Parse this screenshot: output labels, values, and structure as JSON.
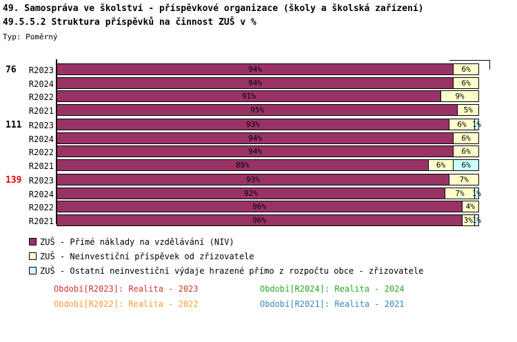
{
  "header": {
    "title_line1": "49. Samospráva ve školství - příspěvkové organizace (školy a školská zařízení)",
    "title_line2": "49.5.5.2 Struktura příspěvků na činnost ZUŠ v %",
    "type_label": "Typ: Poměrný"
  },
  "chart_data": {
    "type": "bar",
    "subtype": "horizontal-stacked-100pct",
    "unit": "%",
    "xlim": [
      0,
      100
    ],
    "grid": false,
    "legend_position": "bottom-left",
    "series": [
      {
        "name": "ZUŠ - Přímé náklady na vzdělávání (NIV)",
        "color": "#993366"
      },
      {
        "name": "ZUŠ - Neinvestiční příspěvek od zřizovatele",
        "color": "#FFFFCC"
      },
      {
        "name": "ZUŠ - Ostatní neinvestiční výdaje hrazené přímo z rozpočtu obce - zřizovatele",
        "color": "#CCFFFF"
      }
    ],
    "groups": [
      {
        "label": "76",
        "label_color": "#000000",
        "rows": [
          {
            "label": "R2023",
            "values": [
              94,
              6,
              0
            ]
          },
          {
            "label": "R2024",
            "values": [
              94,
              6,
              0
            ]
          },
          {
            "label": "R2022",
            "values": [
              91,
              9,
              0
            ]
          },
          {
            "label": "R2021",
            "values": [
              95,
              5,
              0
            ]
          }
        ]
      },
      {
        "label": "111",
        "label_color": "#000000",
        "rows": [
          {
            "label": "R2023",
            "values": [
              93,
              6,
              1
            ]
          },
          {
            "label": "R2024",
            "values": [
              94,
              6,
              0
            ]
          },
          {
            "label": "R2022",
            "values": [
              94,
              6,
              0
            ]
          },
          {
            "label": "R2021",
            "values": [
              88,
              6,
              6
            ]
          }
        ]
      },
      {
        "label": "139",
        "label_color": "#EE0000",
        "rows": [
          {
            "label": "R2023",
            "values": [
              93,
              7,
              0
            ]
          },
          {
            "label": "R2024",
            "values": [
              92,
              7,
              1
            ]
          },
          {
            "label": "R2022",
            "values": [
              96,
              4,
              0
            ]
          },
          {
            "label": "R2021",
            "values": [
              96,
              3,
              1
            ]
          }
        ]
      }
    ]
  },
  "legend": {
    "items": [
      {
        "label": "ZUŠ - Přímé náklady na vzdělávání (NIV)",
        "color": "#993366"
      },
      {
        "label": "ZUŠ - Neinvestiční příspěvek od zřizovatele",
        "color": "#FFFFCC"
      },
      {
        "label": "ZUŠ - Ostatní neinvestiční výdaje hrazené přímo z rozpočtu obce - zřizovatele",
        "color": "#CCFFFF"
      }
    ]
  },
  "footer": {
    "annotations": [
      {
        "text": "Období[R2023]: Realita - 2023",
        "color": "#CC3333",
        "col": 0,
        "row": 0
      },
      {
        "text": "Období[R2024]: Realita - 2024",
        "color": "#22AA22",
        "col": 1,
        "row": 0
      },
      {
        "text": "Období[R2022]: Realita - 2022",
        "color": "#FF9933",
        "col": 0,
        "row": 1
      },
      {
        "text": "Období[R2021]: Realita - 2021",
        "color": "#3388BB",
        "col": 1,
        "row": 1
      }
    ]
  }
}
